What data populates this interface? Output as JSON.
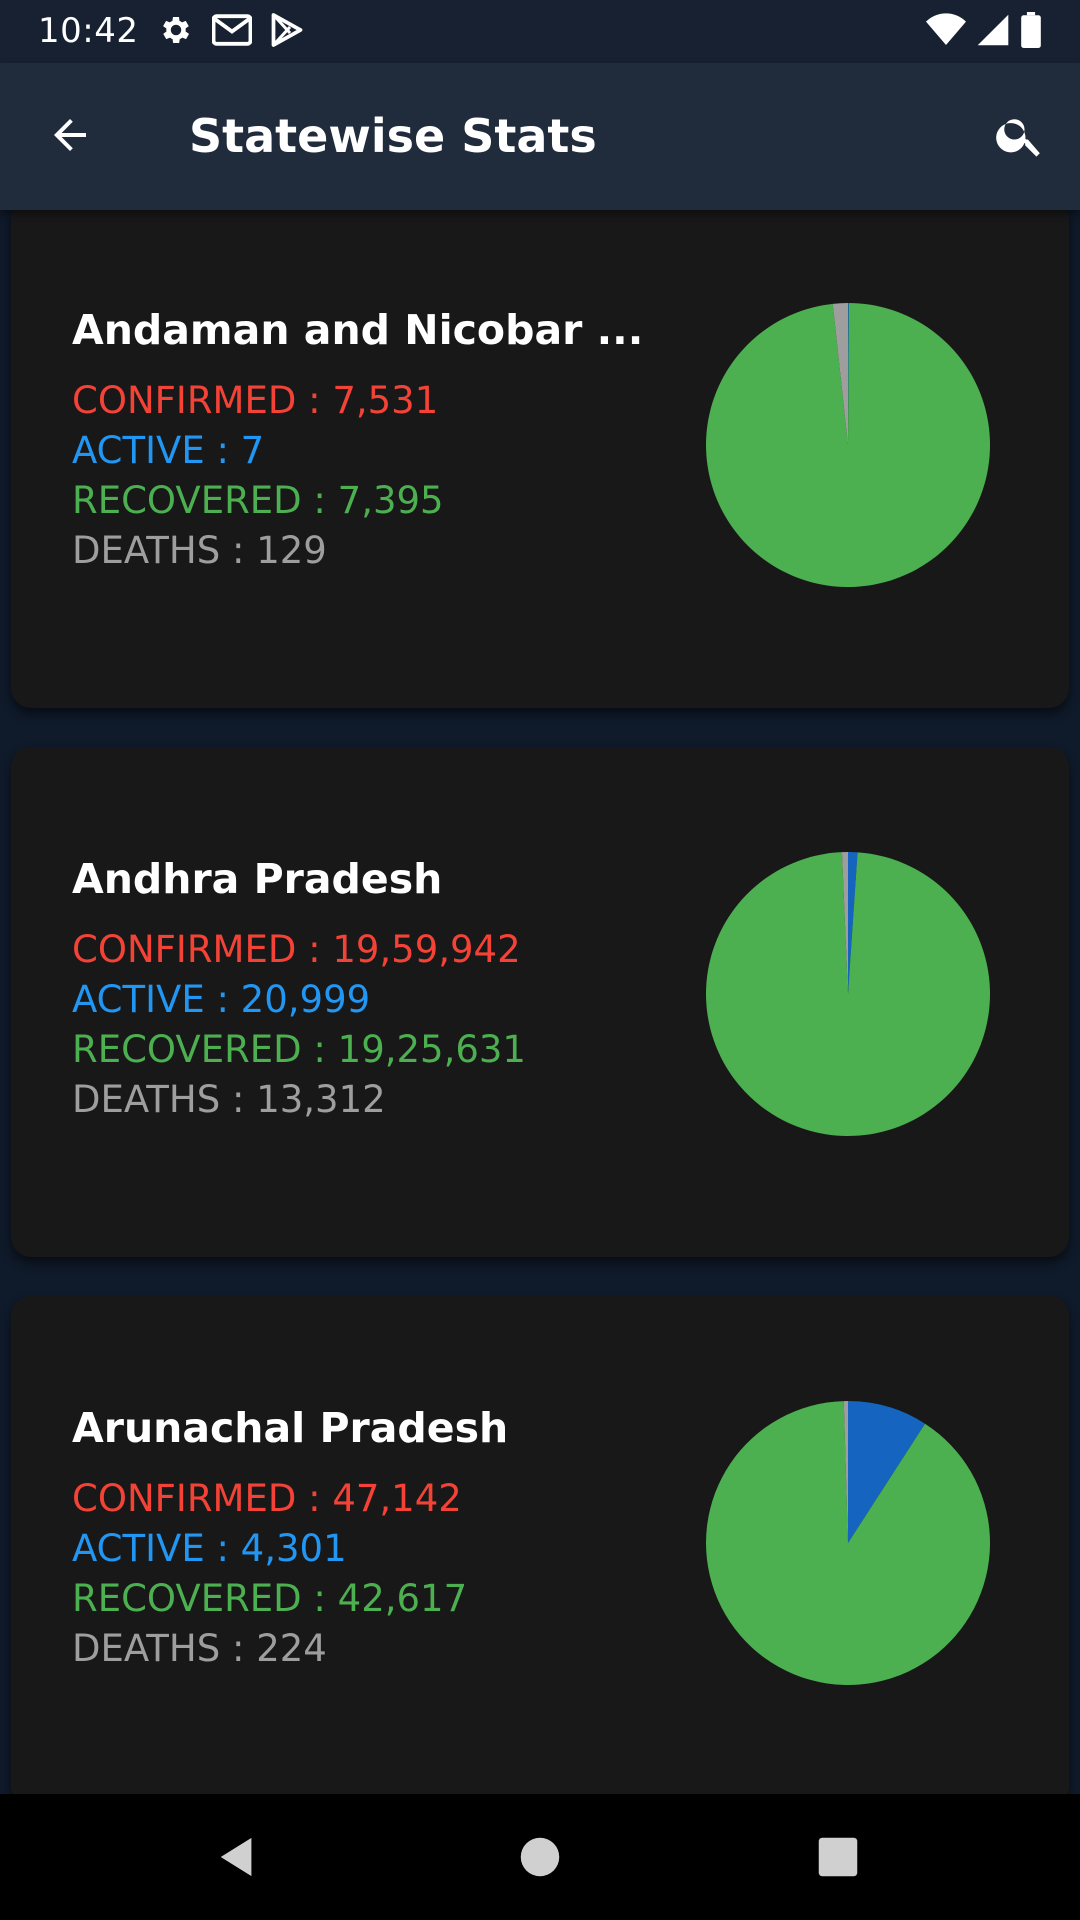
{
  "status_bar": {
    "time": "10:42",
    "left_icons": [
      "gear-icon",
      "gmail-icon",
      "play-store-icon"
    ],
    "right_icons": [
      "wifi-icon",
      "cell-signal-icon",
      "battery-icon"
    ]
  },
  "app_bar": {
    "title": "Statewise Stats",
    "back_icon": "arrow-left-icon",
    "search_icon": "search-icon"
  },
  "colors": {
    "confirmed": "#f44336",
    "active": "#1565c0",
    "recovered": "#4caf50",
    "deaths": "#9e9e9e",
    "card_background": "#181818",
    "app_bar": "#202b3c"
  },
  "states": [
    {
      "name": "Andaman and Nicobar ...",
      "confirmed": "CONFIRMED : 7,531",
      "active": "ACTIVE : 7",
      "recovered": "RECOVERED : 7,395",
      "deaths": "DEATHS : 129"
    },
    {
      "name": "Andhra Pradesh",
      "confirmed": "CONFIRMED : 19,59,942",
      "active": "ACTIVE : 20,999",
      "recovered": "RECOVERED : 19,25,631",
      "deaths": "DEATHS : 13,312"
    },
    {
      "name": "Arunachal Pradesh",
      "confirmed": "CONFIRMED : 47,142",
      "active": "ACTIVE : 4,301",
      "recovered": "RECOVERED : 42,617",
      "deaths": "DEATHS : 224"
    }
  ],
  "chart_data": [
    {
      "type": "pie",
      "categories": [
        "ACTIVE",
        "RECOVERED",
        "DEATHS"
      ],
      "values": [
        7,
        7395,
        129
      ]
    },
    {
      "type": "pie",
      "categories": [
        "ACTIVE",
        "RECOVERED",
        "DEATHS"
      ],
      "values": [
        20999,
        1925631,
        13312
      ]
    },
    {
      "type": "pie",
      "categories": [
        "ACTIVE",
        "RECOVERED",
        "DEATHS"
      ],
      "values": [
        4301,
        42617,
        224
      ]
    }
  ],
  "nav_bar": {
    "icons": [
      "back-triangle-icon",
      "home-circle-icon",
      "recents-square-icon"
    ]
  }
}
